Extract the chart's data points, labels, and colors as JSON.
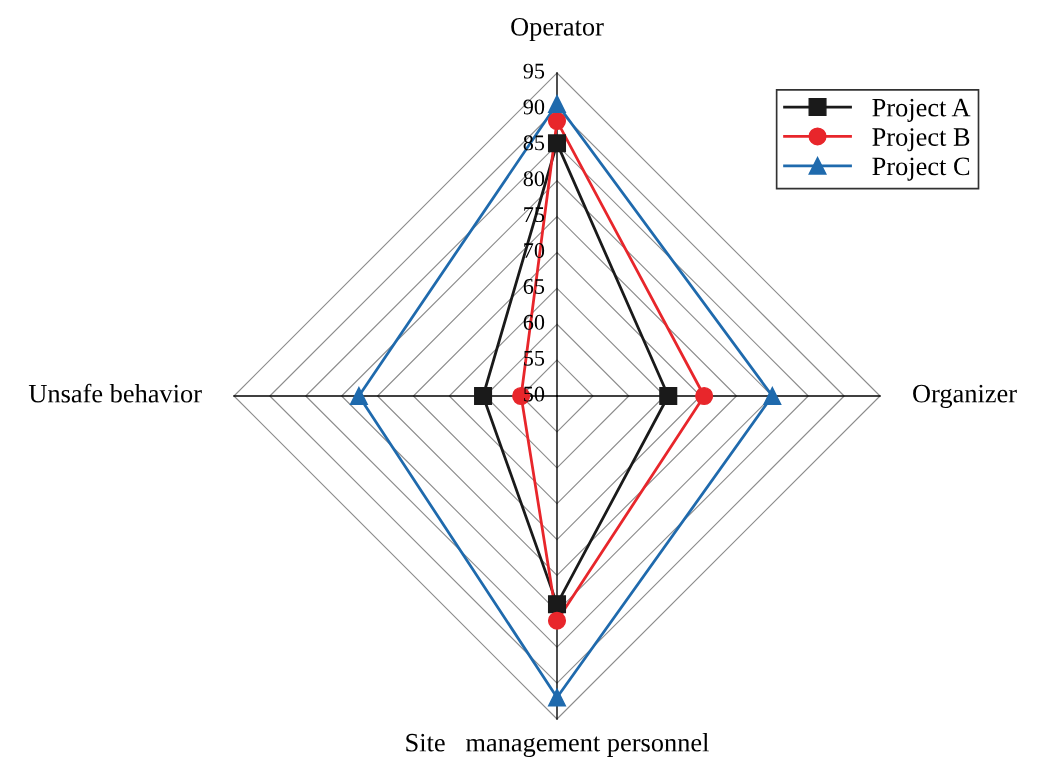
{
  "chart_data": {
    "type": "radar",
    "categories": [
      "Operator",
      "Organizer",
      "Site   management personnel",
      "Unsafe behavior"
    ],
    "ylim": [
      50,
      95
    ],
    "yticks": [
      50,
      55,
      60,
      65,
      70,
      75,
      80,
      85,
      90,
      95
    ],
    "grid": true,
    "legend": "top right",
    "line_style": "solid",
    "series": [
      {
        "name": "Project A",
        "color": "#1a1a1a",
        "marker": "square",
        "values": [
          85.2,
          65.5,
          79,
          60.3
        ]
      },
      {
        "name": "Project B",
        "color": "#e8262b",
        "marker": "circle",
        "values": [
          88.3,
          70.5,
          81.3,
          55
        ]
      },
      {
        "name": "Project C",
        "color": "#1f6aad",
        "marker": "triangle",
        "values": [
          90.7,
          80,
          92,
          77.6
        ]
      }
    ]
  }
}
